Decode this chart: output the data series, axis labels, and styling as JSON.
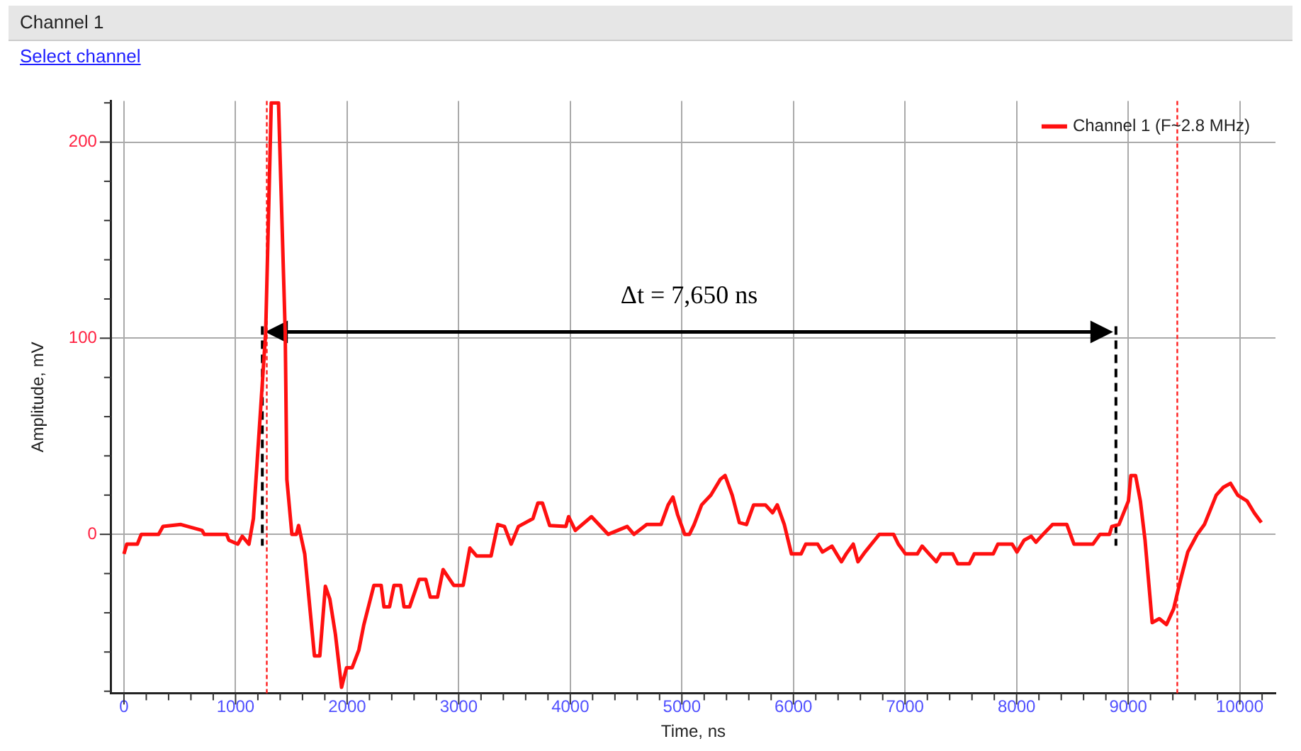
{
  "chart_data": {
    "type": "line",
    "title": "Channel 1",
    "subtitle": "Select channel",
    "xlabel": "Time, ns",
    "ylabel": "Amplitude, mV",
    "xlim": [
      -115,
      10320
    ],
    "ylim": [
      -81,
      221
    ],
    "xticks": [
      0,
      1000,
      2000,
      3000,
      4000,
      5000,
      6000,
      7000,
      8000,
      9000,
      10000
    ],
    "yticks": [
      0,
      100,
      200
    ],
    "grid": true,
    "legend": "top right",
    "marker": "none",
    "line_style": "solid",
    "ref_lines": [
      {
        "axis": "x",
        "value": 1280,
        "color": "#ff2020",
        "line_style": "dotted"
      },
      {
        "axis": "x",
        "value": 9440,
        "color": "#ff2020",
        "line_style": "dotted"
      },
      {
        "axis": "x",
        "value": 1240,
        "color": "#000000",
        "line_style": "dashed"
      },
      {
        "axis": "x",
        "value": 8890,
        "color": "#000000",
        "line_style": "dashed"
      }
    ],
    "annotations": [
      "Δt = 7,650 ns"
    ],
    "series": [
      {
        "name": "Channel 1 (F~2.8 MHz)",
        "color": "#ff1010",
        "x": [
          0,
          25,
          120,
          155,
          310,
          350,
          510,
          700,
          720,
          920,
          940,
          1020,
          1060,
          1120,
          1160,
          1270,
          1320,
          1385,
          1445,
          1460,
          1505,
          1545,
          1565,
          1620,
          1707,
          1755,
          1805,
          1845,
          1895,
          1950,
          1995,
          2045,
          2105,
          2150,
          2240,
          2305,
          2330,
          2380,
          2420,
          2480,
          2510,
          2560,
          2645,
          2705,
          2745,
          2810,
          2860,
          2955,
          3040,
          3100,
          3160,
          3290,
          3350,
          3410,
          3470,
          3535,
          3665,
          3710,
          3750,
          3815,
          3960,
          3985,
          4045,
          4190,
          4340,
          4510,
          4570,
          4685,
          4813,
          4877,
          4920,
          4962,
          5025,
          5068,
          5110,
          5177,
          5260,
          5344,
          5387,
          5451,
          5515,
          5579,
          5643,
          5749,
          5813,
          5855,
          5918,
          5982,
          6068,
          6110,
          6217,
          6260,
          6345,
          6387,
          6430,
          6472,
          6536,
          6578,
          6642,
          6727,
          6770,
          6897,
          6940,
          7004,
          7110,
          7153,
          7216,
          7280,
          7322,
          7428,
          7471,
          7577,
          7620,
          7790,
          7832,
          7960,
          8003,
          8067,
          8131,
          8173,
          8237,
          8322,
          8450,
          8514,
          8684,
          8747,
          8832,
          8853,
          8917,
          9002,
          9024,
          9066,
          9109,
          9151,
          9215,
          9279,
          9343,
          9407,
          9470,
          9534,
          9619,
          9683,
          9789,
          9853,
          9917,
          9981,
          10065,
          10129,
          10193
        ],
        "values": [
          -10,
          -5,
          -5,
          0,
          0,
          4,
          5,
          2,
          0,
          0,
          -3,
          -5,
          -1,
          -5,
          8,
          103,
          220,
          220,
          103,
          28,
          0,
          0,
          4.5,
          -10,
          -62,
          -62,
          -26.5,
          -33,
          -51,
          -78,
          -68,
          -68,
          -59,
          -46,
          -26,
          -26,
          -37,
          -37,
          -26,
          -26,
          -37,
          -37,
          -23,
          -23,
          -32,
          -32,
          -18,
          -26,
          -26,
          -7,
          -11,
          -11,
          5,
          4,
          -5,
          4,
          8,
          16,
          16,
          4.5,
          4,
          9,
          2,
          9,
          0,
          4,
          0,
          5,
          5,
          15,
          19,
          10,
          0,
          0,
          5,
          15,
          20,
          28,
          30,
          20,
          6,
          5,
          15,
          15,
          11,
          15,
          5,
          -10,
          -10,
          -5,
          -5,
          -9,
          -6,
          -10,
          -14,
          -10,
          -5,
          -14,
          -9,
          -3,
          0,
          0,
          -5,
          -10,
          -10,
          -6,
          -10,
          -14,
          -10,
          -10,
          -15,
          -15,
          -10,
          -10,
          -5,
          -5,
          -9,
          -3,
          -1,
          -4,
          0,
          5,
          5,
          -5,
          -5,
          0,
          0,
          4,
          5,
          17,
          30,
          30,
          17,
          -3,
          -45,
          -43,
          -46,
          -38,
          -23,
          -9,
          0,
          5,
          20,
          24,
          26,
          20,
          17,
          11,
          6
        ]
      }
    ]
  }
}
